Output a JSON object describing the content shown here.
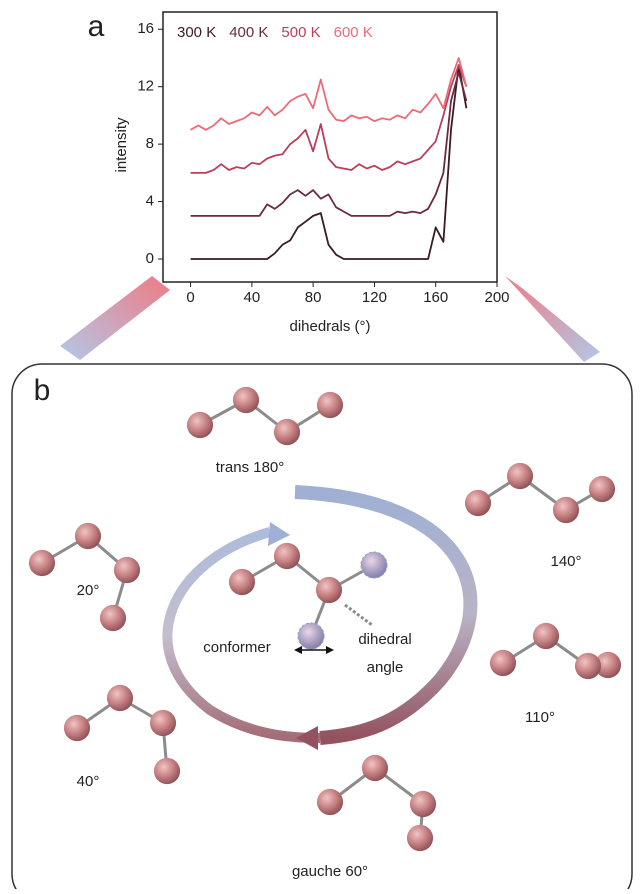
{
  "chart_data": {
    "type": "line",
    "panel_label": "a",
    "xlabel": "dihedrals (°)",
    "ylabel": "intensity",
    "x": [
      0,
      5,
      10,
      15,
      20,
      25,
      30,
      35,
      40,
      45,
      50,
      55,
      60,
      65,
      70,
      75,
      80,
      85,
      90,
      95,
      100,
      105,
      110,
      115,
      120,
      125,
      130,
      135,
      140,
      145,
      150,
      155,
      160,
      165,
      170,
      175,
      180
    ],
    "series": [
      {
        "name": "300 K",
        "color": "#3b1a24",
        "values": [
          0,
          0,
          0,
          0,
          0,
          0,
          0,
          0,
          0,
          0,
          0,
          0.4,
          1.0,
          1.3,
          2.2,
          2.6,
          3.0,
          3.2,
          1.0,
          0.3,
          0,
          0,
          0,
          0,
          0,
          0,
          0,
          0,
          0,
          0,
          0,
          0,
          2.2,
          1.2,
          9,
          13.5,
          10.5
        ]
      },
      {
        "name": "400 K",
        "color": "#6b2a3e",
        "values": [
          3,
          3,
          3,
          3,
          3,
          3,
          3,
          3,
          3,
          3,
          3.8,
          3.5,
          3.9,
          4.5,
          4.8,
          4.4,
          4.8,
          4.2,
          4.5,
          3.6,
          3.3,
          3,
          3,
          3,
          3,
          3,
          3,
          3.3,
          3.2,
          3.3,
          3.2,
          3.5,
          4.5,
          6,
          11,
          13,
          11
        ]
      },
      {
        "name": "500 K",
        "color": "#b8405a",
        "values": [
          6,
          6,
          6,
          6.2,
          6.6,
          6.2,
          6.4,
          6.3,
          6.7,
          6.6,
          7.0,
          7.2,
          7.3,
          8.0,
          8.4,
          9.0,
          7.5,
          9.4,
          7.0,
          6.4,
          6.3,
          6.2,
          6.6,
          6.3,
          6.5,
          6.2,
          6.4,
          6.8,
          6.6,
          6.8,
          7.0,
          7.6,
          8.2,
          10,
          12,
          13.5,
          12
        ]
      },
      {
        "name": "600 K",
        "color": "#ee6a78",
        "values": [
          9,
          9.3,
          9,
          9.3,
          9.8,
          9.4,
          9.6,
          9.8,
          10.2,
          10,
          10.6,
          10,
          10.4,
          11,
          11.3,
          11.5,
          10.5,
          12.5,
          10.4,
          9.7,
          9.6,
          10,
          9.8,
          9.9,
          9.6,
          9.8,
          9.7,
          10,
          9.8,
          10.4,
          10.2,
          10.8,
          11.5,
          10.5,
          12.5,
          14,
          12
        ]
      }
    ],
    "xlim": [
      -18,
      200
    ],
    "xticks": [
      0,
      40,
      80,
      120,
      160,
      200
    ],
    "ylim": [
      -1.6,
      17.2
    ],
    "yticks": [
      0,
      4,
      8,
      12,
      16
    ],
    "grid": false
  },
  "diagram": {
    "panel_label": "b",
    "conformer_labels": [
      "trans 180°",
      "140°",
      "20°",
      "110°",
      "40°",
      "gauche 60°"
    ],
    "center_labels": [
      "conformer",
      "dihedral",
      "angle"
    ]
  }
}
